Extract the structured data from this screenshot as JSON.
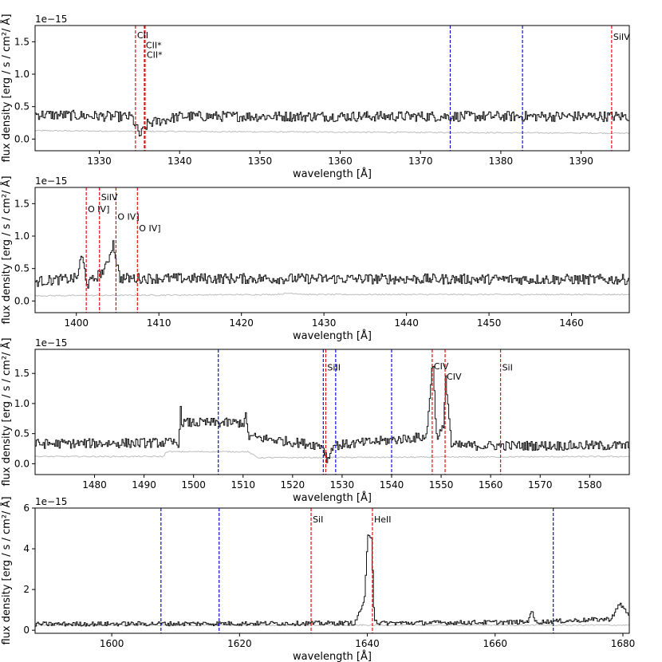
{
  "chart_data": [
    {
      "type": "line",
      "panel": 1,
      "xlabel": "wavelength [Å]",
      "ylabel": "flux density [erg / s / cm²/ Å]",
      "y_offset_label": "1e−15",
      "xlim": [
        1322,
        1396
      ],
      "ylim": [
        -0.18,
        1.75
      ],
      "xticks": [
        1330,
        1340,
        1350,
        1360,
        1370,
        1380,
        1390
      ],
      "yticks": [
        0.0,
        0.5,
        1.0,
        1.5
      ],
      "ytick_labels": [
        "0.0",
        "0.5",
        "1.0",
        "1.5"
      ],
      "flux_profile": [
        [
          1322,
          0.38
        ],
        [
          1334,
          0.34
        ],
        [
          1335,
          0.05
        ],
        [
          1336,
          0.24
        ],
        [
          1340,
          0.35
        ],
        [
          1396,
          0.35
        ]
      ],
      "error_profile": [
        [
          1322,
          0.13
        ],
        [
          1334,
          0.12
        ],
        [
          1396,
          0.09
        ]
      ],
      "red_lines": [
        {
          "x": 1334.5,
          "label": "CII",
          "label_y": 1.6
        },
        {
          "x": 1335.6,
          "label": "CII*",
          "label_y": 1.45
        },
        {
          "x": 1335.7,
          "label": "CII*",
          "label_y": 1.3
        },
        {
          "x": 1393.8,
          "label": "SiIV",
          "label_y": 1.58
        }
      ],
      "blue_lines": [
        1373.7,
        1382.7
      ]
    },
    {
      "type": "line",
      "panel": 2,
      "xlabel": "wavelength [Å]",
      "ylabel": "flux density [erg / s / cm²/ Å]",
      "y_offset_label": "1e−15",
      "xlim": [
        1395,
        1467
      ],
      "ylim": [
        -0.18,
        1.75
      ],
      "xticks": [
        1400,
        1410,
        1420,
        1430,
        1440,
        1450,
        1460
      ],
      "yticks": [
        0.0,
        0.5,
        1.0,
        1.5
      ],
      "ytick_labels": [
        "0.0",
        "0.5",
        "1.0",
        "1.5"
      ],
      "flux_profile": [
        [
          1395,
          0.3
        ],
        [
          1400,
          0.35
        ],
        [
          1400.6,
          0.7
        ],
        [
          1401.3,
          0.25
        ],
        [
          1403.5,
          0.5
        ],
        [
          1404.4,
          0.9
        ],
        [
          1405.2,
          0.35
        ],
        [
          1467,
          0.33
        ]
      ],
      "error_profile": [
        [
          1395,
          0.08
        ],
        [
          1424,
          0.1
        ],
        [
          1426,
          0.12
        ],
        [
          1428,
          0.1
        ],
        [
          1467,
          0.1
        ]
      ],
      "red_lines": [
        {
          "x": 1401.2,
          "label": "O IV]",
          "label_y": 1.42
        },
        {
          "x": 1402.8,
          "label": "SiIV",
          "label_y": 1.6
        },
        {
          "x": 1404.8,
          "label": "O IV]",
          "label_y": 1.3
        },
        {
          "x": 1407.4,
          "label": "O IV]",
          "label_y": 1.12
        }
      ],
      "blue_lines": []
    },
    {
      "type": "line",
      "panel": 3,
      "xlabel": "wavelength [Å]",
      "ylabel": "flux density [erg / s / cm²/ Å]",
      "y_offset_label": "1e−15",
      "xlim": [
        1468,
        1588
      ],
      "ylim": [
        -0.18,
        1.9
      ],
      "xticks": [
        1480,
        1490,
        1500,
        1510,
        1520,
        1530,
        1540,
        1550,
        1560,
        1570,
        1580
      ],
      "yticks": [
        0.0,
        0.5,
        1.0,
        1.5
      ],
      "ytick_labels": [
        "0.0",
        "0.5",
        "1.0",
        "1.5"
      ],
      "flux_profile": [
        [
          1468,
          0.33
        ],
        [
          1497,
          0.35
        ],
        [
          1497.2,
          0.95
        ],
        [
          1497.6,
          0.68
        ],
        [
          1510,
          0.68
        ],
        [
          1510.5,
          0.78
        ],
        [
          1511,
          0.45
        ],
        [
          1526,
          0.3
        ],
        [
          1527,
          0.05
        ],
        [
          1528,
          0.3
        ],
        [
          1547,
          0.45
        ],
        [
          1548.2,
          1.75
        ],
        [
          1549,
          0.45
        ],
        [
          1550.5,
          0.6
        ],
        [
          1550.8,
          1.5
        ],
        [
          1552,
          0.3
        ],
        [
          1588,
          0.3
        ]
      ],
      "error_profile": [
        [
          1468,
          0.12
        ],
        [
          1494,
          0.12
        ],
        [
          1494.5,
          0.2
        ],
        [
          1511,
          0.2
        ],
        [
          1513,
          0.1
        ],
        [
          1588,
          0.12
        ]
      ],
      "red_lines": [
        {
          "x": 1526.7,
          "label": "SiII",
          "label_y": 1.6
        },
        {
          "x": 1548.2,
          "label": "CIV",
          "label_y": 1.62
        },
        {
          "x": 1550.8,
          "label": "CIV",
          "label_y": 1.45
        },
        {
          "x": 1562.0,
          "label": "SiI",
          "label_y": 1.6
        }
      ],
      "blue_lines": [
        1505.0,
        1526.2,
        1528.7,
        1540.0
      ]
    },
    {
      "type": "line",
      "panel": 4,
      "xlabel": "wavelength [Å]",
      "ylabel": "flux density [erg / s / cm²/ Å]",
      "y_offset_label": "1e−15",
      "xlim": [
        1588,
        1681
      ],
      "ylim": [
        -0.15,
        6.0
      ],
      "xticks": [
        1600,
        1620,
        1640,
        1660,
        1680
      ],
      "yticks": [
        0,
        2,
        4,
        6
      ],
      "ytick_labels": [
        "0",
        "2",
        "4",
        "6"
      ],
      "flux_profile": [
        [
          1588,
          0.3
        ],
        [
          1638,
          0.35
        ],
        [
          1639.5,
          1.5
        ],
        [
          1640,
          4.6
        ],
        [
          1640.6,
          4.6
        ],
        [
          1641,
          0.6
        ],
        [
          1641.6,
          0.35
        ],
        [
          1665,
          0.4
        ],
        [
          1665.6,
          1.0
        ],
        [
          1666.2,
          0.4
        ],
        [
          1678,
          0.55
        ],
        [
          1679.5,
          1.3
        ],
        [
          1681,
          0.7
        ]
      ],
      "error_profile": [
        [
          1588,
          0.25
        ],
        [
          1681,
          0.25
        ]
      ],
      "red_lines": [
        {
          "x": 1631.2,
          "label": "SiI",
          "label_y": 5.45
        },
        {
          "x": 1640.8,
          "label": "HeII",
          "label_y": 5.45
        }
      ],
      "blue_lines": [
        1607.7,
        1616.8,
        1669.1
      ]
    }
  ]
}
